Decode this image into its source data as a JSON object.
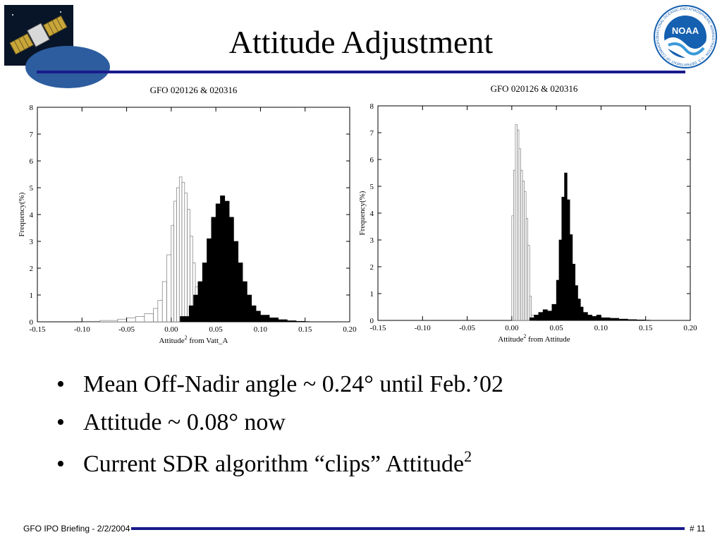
{
  "slide": {
    "title": "Attitude Adjustment",
    "bullets": [
      {
        "text": "Mean Off-Nadir angle ~ 0.24° until Feb.’02",
        "sup": ""
      },
      {
        "text": "Attitude ~ 0.08° now",
        "sup": ""
      },
      {
        "text": "Current SDR algorithm “clips” Attitude",
        "sup": "2"
      }
    ],
    "bullet_symbol": "•",
    "footer_left": "GFO IPO Briefing - 2/2/2004",
    "footer_right": "# 11",
    "logos": {
      "right_text": "NOAA",
      "right_ring_text": "NATIONAL OCEANIC AND ATMOSPHERIC ADMINISTRATION · U.S. DEPARTMENT OF COMMERCE"
    },
    "colors": {
      "rule": "#1a1a8c",
      "noaa_blue": "#1560b0",
      "noaa_light": "#3a9ad9"
    }
  },
  "chart_data": [
    {
      "type": "bar",
      "title": "GFO 020126 & 020316",
      "xlabel_prefix": "Attitude",
      "xlabel_sup": "2",
      "xlabel_suffix": " from Vatt_A",
      "ylabel": "Frequency(%)",
      "xlim": [
        -0.15,
        0.2
      ],
      "ylim": [
        0,
        8
      ],
      "xticks": [
        "-0.15",
        "-0.10",
        "-0.05",
        "0.00",
        "0.05",
        "0.10",
        "0.15",
        "0.20"
      ],
      "yticks": [
        "0",
        "1",
        "2",
        "3",
        "4",
        "5",
        "6",
        "7",
        "8"
      ],
      "grid": false,
      "series": [
        {
          "style": "outline",
          "bins": [
            -0.1,
            -0.08,
            -0.06,
            -0.05,
            -0.04,
            -0.03,
            -0.02,
            -0.015,
            -0.01,
            -0.005,
            0.0,
            0.003,
            0.006,
            0.009,
            0.012,
            0.015,
            0.018,
            0.021,
            0.024,
            0.027,
            0.03,
            0.035
          ],
          "values": [
            0.02,
            0.05,
            0.1,
            0.15,
            0.2,
            0.3,
            0.5,
            0.8,
            1.5,
            2.5,
            3.6,
            4.5,
            5.0,
            5.4,
            5.2,
            4.8,
            4.2,
            3.2,
            2.2,
            1.3,
            0.7,
            0.3
          ]
        },
        {
          "style": "filled",
          "bins": [
            0.01,
            0.02,
            0.025,
            0.03,
            0.035,
            0.04,
            0.045,
            0.05,
            0.055,
            0.06,
            0.065,
            0.07,
            0.075,
            0.08,
            0.085,
            0.09,
            0.095,
            0.1,
            0.11,
            0.12,
            0.13,
            0.14,
            0.15
          ],
          "values": [
            0.2,
            0.6,
            1.0,
            1.5,
            2.2,
            3.1,
            3.9,
            4.4,
            4.7,
            4.5,
            3.9,
            3.0,
            2.2,
            1.5,
            1.0,
            0.6,
            0.4,
            0.25,
            0.15,
            0.08,
            0.04,
            0.02,
            0.01
          ]
        }
      ]
    },
    {
      "type": "bar",
      "title": "GFO 020126 & 020316",
      "xlabel_prefix": "Attitude",
      "xlabel_sup": "2",
      "xlabel_suffix": " from Attitude",
      "ylabel": "Frequency(%)",
      "xlim": [
        -0.15,
        0.2
      ],
      "ylim": [
        0,
        8
      ],
      "xticks": [
        "-0.15",
        "-0.10",
        "-0.05",
        "0.00",
        "0.05",
        "0.10",
        "0.15",
        "0.20"
      ],
      "yticks": [
        "0",
        "1",
        "2",
        "3",
        "4",
        "5",
        "6",
        "7",
        "8"
      ],
      "grid": false,
      "series": [
        {
          "style": "outline",
          "bins": [
            0.0,
            0.002,
            0.004,
            0.006,
            0.008,
            0.01,
            0.012,
            0.014,
            0.016,
            0.018,
            0.02,
            0.022
          ],
          "values": [
            3.9,
            5.6,
            7.3,
            7.1,
            6.4,
            5.6,
            5.2,
            4.8,
            3.8,
            2.8,
            0.9,
            0.2
          ]
        },
        {
          "style": "filled",
          "bins": [
            0.02,
            0.025,
            0.03,
            0.035,
            0.04,
            0.045,
            0.05,
            0.053,
            0.056,
            0.059,
            0.062,
            0.065,
            0.068,
            0.071,
            0.074,
            0.077,
            0.08,
            0.085,
            0.09,
            0.095,
            0.1,
            0.11,
            0.12,
            0.13,
            0.14,
            0.15
          ],
          "values": [
            0.1,
            0.2,
            0.3,
            0.4,
            0.35,
            0.6,
            1.5,
            3.0,
            4.6,
            5.5,
            4.5,
            3.2,
            2.1,
            1.3,
            0.8,
            0.5,
            0.3,
            0.2,
            0.15,
            0.2,
            0.1,
            0.08,
            0.05,
            0.03,
            0.02,
            0.01
          ]
        }
      ]
    }
  ]
}
